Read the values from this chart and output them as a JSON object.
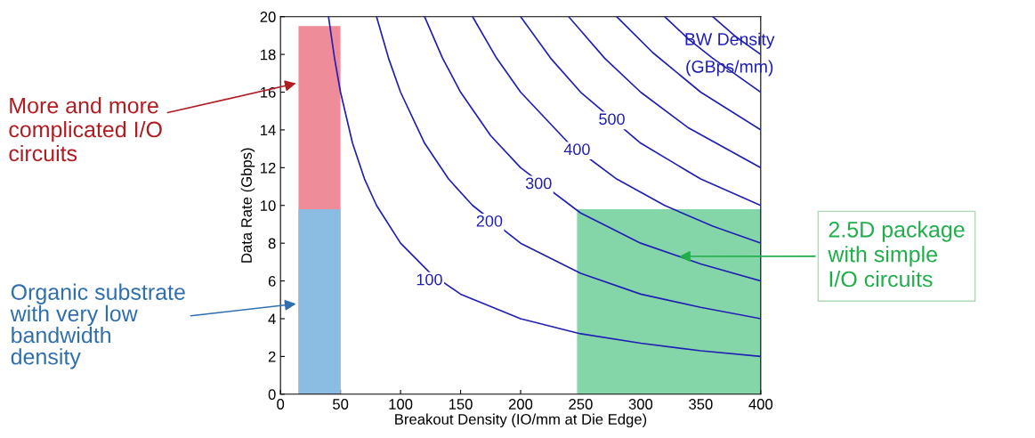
{
  "chart_data": {
    "type": "line",
    "xlabel": "Breakout Density (IO/mm at Die Edge)",
    "ylabel": "Data Rate (Gbps)",
    "xlim": [
      0,
      400
    ],
    "xticks": [
      0,
      50,
      100,
      150,
      200,
      250,
      300,
      350,
      400
    ],
    "ylim": [
      0,
      20
    ],
    "yticks": [
      0,
      2,
      4,
      6,
      8,
      10,
      12,
      14,
      16,
      18,
      20
    ],
    "grid": false,
    "legend": false,
    "series": [
      {
        "type": "area",
        "color": "#ef8c99",
        "x": [
          15,
          50
        ],
        "values": [
          19.5,
          19.5
        ]
      },
      {
        "type": "area",
        "color": "#8bbde3",
        "x": [
          15,
          50
        ],
        "values": [
          9.8,
          9.8
        ]
      },
      {
        "type": "area",
        "color": "#84d6a8",
        "x": [
          247,
          400
        ],
        "values": [
          9.8,
          9.8
        ]
      },
      {
        "color": "#1f1fb4",
        "x": [
          40,
          45,
          50,
          60,
          70,
          80,
          100,
          125,
          150,
          200,
          250,
          300,
          350,
          400
        ],
        "values": [
          20,
          17.8,
          16,
          13.3,
          11.4,
          10,
          8,
          6.4,
          5.3,
          4,
          3.2,
          2.7,
          2.3,
          2
        ]
      },
      {
        "color": "#1f1fb4",
        "x": [
          80,
          90,
          100,
          120,
          140,
          160,
          200,
          250,
          300,
          350,
          400
        ],
        "values": [
          20,
          17.8,
          16,
          13.3,
          11.4,
          10,
          8,
          6.4,
          5.3,
          4.6,
          4
        ]
      },
      {
        "color": "#1f1fb4",
        "x": [
          120,
          135,
          150,
          175,
          200,
          250,
          300,
          350,
          400
        ],
        "values": [
          20,
          17.8,
          16,
          13.7,
          12,
          9.6,
          8,
          6.9,
          6
        ]
      },
      {
        "color": "#1f1fb4",
        "x": [
          160,
          180,
          200,
          240,
          280,
          320,
          360,
          400
        ],
        "values": [
          20,
          17.8,
          16,
          13.3,
          11.4,
          10,
          8.9,
          8
        ]
      },
      {
        "color": "#1f1fb4",
        "x": [
          200,
          225,
          250,
          300,
          350,
          400
        ],
        "values": [
          20,
          17.8,
          16,
          13.3,
          11.4,
          10
        ]
      },
      {
        "color": "#1f1fb4",
        "x": [
          240,
          270,
          300,
          340,
          400
        ],
        "values": [
          20,
          17.8,
          16,
          14.1,
          12
        ]
      },
      {
        "color": "#1f1fb4",
        "x": [
          280,
          310,
          350,
          400
        ],
        "values": [
          20,
          18.1,
          16,
          14
        ]
      },
      {
        "color": "#1f1fb4",
        "x": [
          320,
          340,
          360,
          400
        ],
        "values": [
          20,
          18.8,
          17.8,
          16
        ]
      },
      {
        "color": "#1f1fb4",
        "x": [
          360,
          380,
          400
        ],
        "values": [
          20,
          18.9,
          18
        ]
      }
    ],
    "annotations": [
      {
        "text": "100",
        "x": 124,
        "y": 6.0
      },
      {
        "text": "200",
        "x": 174,
        "y": 9.1
      },
      {
        "text": "300",
        "x": 215,
        "y": 11.1
      },
      {
        "text": "400",
        "x": 247,
        "y": 12.9
      },
      {
        "text": "500",
        "x": 276,
        "y": 14.5
      },
      "BW Density\n(GBps/mm)",
      {
        "text": "More and more\ncomplicated I/O\ncircuits",
        "x": 15,
        "y": 16.5
      },
      {
        "text": "Organic substrate\nwith very low\nbandwidth\ndensity",
        "x": 15,
        "y": 4.8
      },
      {
        "text": "2.5D package\nwith simple\nI/O circuits",
        "x": 330,
        "y": 7.3
      }
    ]
  }
}
